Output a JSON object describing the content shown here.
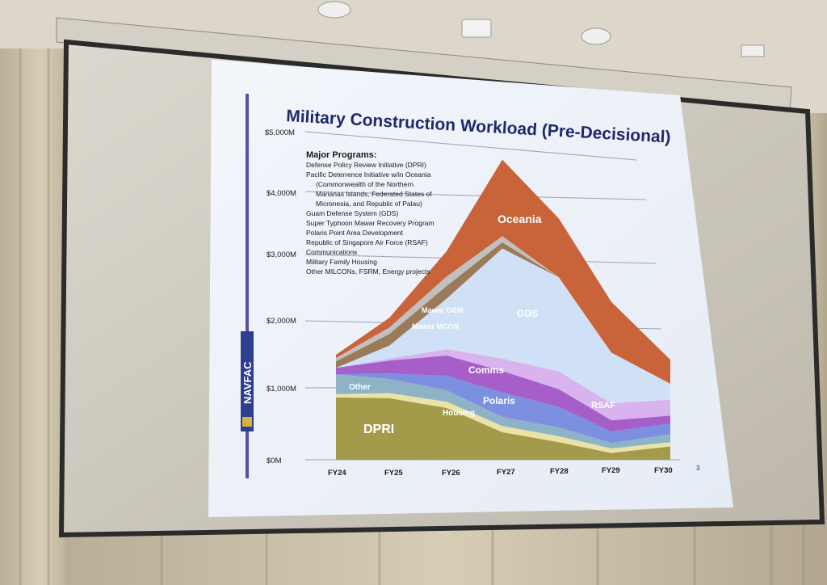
{
  "slide": {
    "title": "Military Construction Workload (Pre-Decisional)",
    "page_number": "3",
    "logo_text": "NAVFAC",
    "programs_heading": "Major Programs:",
    "programs": [
      "Defense Policy Review Initiative (DPRI)",
      "Pacific Deterrence Initiative w/in Oceania",
      "(Commonwealth of the Northern",
      "Marianas Islands, Federated States of",
      "Micronesia, and Republic of Palau)",
      "Guam Defense System (GDS)",
      "Super Typhoon Mawar Recovery Program",
      "Polaris Point Area Development",
      "Republic of Singapore Air Force (RSAF)",
      "Communications",
      "Military Family Housing",
      "Other MILCONs, FSRM, Energy projects"
    ]
  },
  "chart_data": {
    "type": "area",
    "stacked": true,
    "categories": [
      "FY24",
      "FY25",
      "FY26",
      "FY27",
      "FY28",
      "FY29",
      "FY30"
    ],
    "y_tick_labels": [
      "$0M",
      "$1,000M",
      "$2,000M",
      "$3,000M",
      "$4,000M",
      "$5,000M"
    ],
    "ylim": [
      0,
      5000
    ],
    "unit": "$M",
    "series": [
      {
        "name": "DPRI",
        "color": "#a39b4a",
        "values": [
          950,
          950,
          820,
          450,
          300,
          120,
          250
        ]
      },
      {
        "name": "Housing",
        "color": "#e9e3a6",
        "values": [
          50,
          80,
          100,
          100,
          100,
          80,
          80
        ]
      },
      {
        "name": "Other",
        "color": "#8fb3c6",
        "values": [
          300,
          220,
          180,
          150,
          150,
          100,
          150
        ]
      },
      {
        "name": "Polaris",
        "color": "#7d8fe0",
        "values": [
          0,
          80,
          230,
          400,
          350,
          200,
          200
        ]
      },
      {
        "name": "Comms",
        "color": "#a65fc9",
        "values": [
          100,
          200,
          320,
          350,
          300,
          200,
          150
        ]
      },
      {
        "name": "RSAF",
        "color": "#d8b3ee",
        "values": [
          0,
          30,
          100,
          200,
          300,
          300,
          300
        ]
      },
      {
        "name": "GDS",
        "color": "#cfe0f7",
        "values": [
          0,
          200,
          800,
          1800,
          1600,
          900,
          300
        ]
      },
      {
        "name": "Mawar MCON",
        "color": "#9a7a58",
        "values": [
          100,
          180,
          200,
          100,
          0,
          0,
          0
        ]
      },
      {
        "name": "Mawar O&M",
        "color": "#c0c0c0",
        "values": [
          50,
          100,
          150,
          100,
          0,
          0,
          0
        ]
      },
      {
        "name": "Oceania",
        "color": "#c9643a",
        "values": [
          50,
          150,
          400,
          1250,
          1000,
          900,
          450
        ]
      }
    ]
  }
}
